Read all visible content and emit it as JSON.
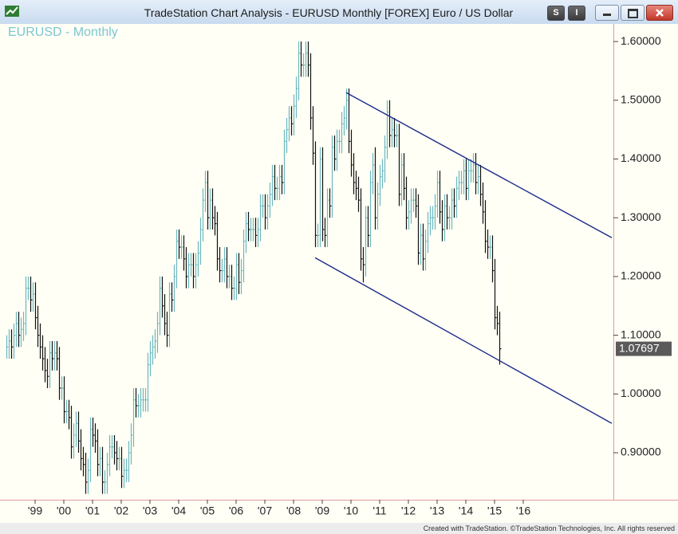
{
  "window": {
    "title": "TradeStation Chart Analysis - EURUSD Monthly [FOREX] Euro / US Dollar",
    "buttons": [
      "S",
      "I"
    ]
  },
  "footer": "Created with TradeStation. ©TradeStation Technologies, Inc. All rights reserved",
  "chart_data": {
    "type": "ohlc",
    "title": "EURUSD - Monthly",
    "x": [
      "1998-01",
      "1998-02",
      "1998-03",
      "1998-04",
      "1998-05",
      "1998-06",
      "1998-07",
      "1998-08",
      "1998-09",
      "1998-10",
      "1998-11",
      "1998-12",
      "1999-01",
      "1999-02",
      "1999-03",
      "1999-04",
      "1999-05",
      "1999-06",
      "1999-07",
      "1999-08",
      "1999-09",
      "1999-10",
      "1999-11",
      "1999-12",
      "2000-01",
      "2000-02",
      "2000-03",
      "2000-04",
      "2000-05",
      "2000-06",
      "2000-07",
      "2000-08",
      "2000-09",
      "2000-10",
      "2000-11",
      "2000-12",
      "2001-01",
      "2001-02",
      "2001-03",
      "2001-04",
      "2001-05",
      "2001-06",
      "2001-07",
      "2001-08",
      "2001-09",
      "2001-10",
      "2001-11",
      "2001-12",
      "2002-01",
      "2002-02",
      "2002-03",
      "2002-04",
      "2002-05",
      "2002-06",
      "2002-07",
      "2002-08",
      "2002-09",
      "2002-10",
      "2002-11",
      "2002-12",
      "2003-01",
      "2003-02",
      "2003-03",
      "2003-04",
      "2003-05",
      "2003-06",
      "2003-07",
      "2003-08",
      "2003-09",
      "2003-10",
      "2003-11",
      "2003-12",
      "2004-01",
      "2004-02",
      "2004-03",
      "2004-04",
      "2004-05",
      "2004-06",
      "2004-07",
      "2004-08",
      "2004-09",
      "2004-10",
      "2004-11",
      "2004-12",
      "2005-01",
      "2005-02",
      "2005-03",
      "2005-04",
      "2005-05",
      "2005-06",
      "2005-07",
      "2005-08",
      "2005-09",
      "2005-10",
      "2005-11",
      "2005-12",
      "2006-01",
      "2006-02",
      "2006-03",
      "2006-04",
      "2006-05",
      "2006-06",
      "2006-07",
      "2006-08",
      "2006-09",
      "2006-10",
      "2006-11",
      "2006-12",
      "2007-01",
      "2007-02",
      "2007-03",
      "2007-04",
      "2007-05",
      "2007-06",
      "2007-07",
      "2007-08",
      "2007-09",
      "2007-10",
      "2007-11",
      "2007-12",
      "2008-01",
      "2008-02",
      "2008-03",
      "2008-04",
      "2008-05",
      "2008-06",
      "2008-07",
      "2008-08",
      "2008-09",
      "2008-10",
      "2008-11",
      "2008-12",
      "2009-01",
      "2009-02",
      "2009-03",
      "2009-04",
      "2009-05",
      "2009-06",
      "2009-07",
      "2009-08",
      "2009-09",
      "2009-10",
      "2009-11",
      "2009-12",
      "2010-01",
      "2010-02",
      "2010-03",
      "2010-04",
      "2010-05",
      "2010-06",
      "2010-07",
      "2010-08",
      "2010-09",
      "2010-10",
      "2010-11",
      "2010-12",
      "2011-01",
      "2011-02",
      "2011-03",
      "2011-04",
      "2011-05",
      "2011-06",
      "2011-07",
      "2011-08",
      "2011-09",
      "2011-10",
      "2011-11",
      "2011-12",
      "2012-01",
      "2012-02",
      "2012-03",
      "2012-04",
      "2012-05",
      "2012-06",
      "2012-07",
      "2012-08",
      "2012-09",
      "2012-10",
      "2012-11",
      "2012-12",
      "2013-01",
      "2013-02",
      "2013-03",
      "2013-04",
      "2013-05",
      "2013-06",
      "2013-07",
      "2013-08",
      "2013-09",
      "2013-10",
      "2013-11",
      "2013-12",
      "2014-01",
      "2014-02",
      "2014-03",
      "2014-04",
      "2014-05",
      "2014-06",
      "2014-07",
      "2014-08",
      "2014-09",
      "2014-10",
      "2014-11",
      "2014-12",
      "2015-01",
      "2015-02",
      "2015-03"
    ],
    "high": [
      1.1,
      1.11,
      1.11,
      1.12,
      1.14,
      1.14,
      1.13,
      1.14,
      1.2,
      1.2,
      1.2,
      1.19,
      1.19,
      1.15,
      1.12,
      1.1,
      1.08,
      1.06,
      1.09,
      1.09,
      1.09,
      1.09,
      1.08,
      1.03,
      1.03,
      0.99,
      0.99,
      0.98,
      0.95,
      0.97,
      0.97,
      0.94,
      0.91,
      0.9,
      0.89,
      0.96,
      0.96,
      0.95,
      0.94,
      0.91,
      0.91,
      0.87,
      0.9,
      0.93,
      0.93,
      0.93,
      0.92,
      0.91,
      0.91,
      0.89,
      0.89,
      0.92,
      0.95,
      1.01,
      1.01,
      1.0,
      1.01,
      1.01,
      1.01,
      1.07,
      1.09,
      1.1,
      1.11,
      1.14,
      1.2,
      1.2,
      1.17,
      1.14,
      1.19,
      1.19,
      1.22,
      1.28,
      1.28,
      1.27,
      1.27,
      1.25,
      1.24,
      1.24,
      1.24,
      1.24,
      1.26,
      1.3,
      1.35,
      1.38,
      1.38,
      1.35,
      1.35,
      1.32,
      1.31,
      1.25,
      1.23,
      1.25,
      1.25,
      1.22,
      1.22,
      1.2,
      1.24,
      1.24,
      1.23,
      1.28,
      1.31,
      1.31,
      1.3,
      1.3,
      1.3,
      1.3,
      1.34,
      1.34,
      1.34,
      1.34,
      1.36,
      1.39,
      1.39,
      1.37,
      1.39,
      1.39,
      1.45,
      1.47,
      1.49,
      1.49,
      1.51,
      1.54,
      1.6,
      1.6,
      1.58,
      1.6,
      1.6,
      1.58,
      1.49,
      1.43,
      1.29,
      1.42,
      1.42,
      1.3,
      1.35,
      1.35,
      1.44,
      1.44,
      1.45,
      1.45,
      1.48,
      1.49,
      1.52,
      1.52,
      1.45,
      1.41,
      1.38,
      1.37,
      1.35,
      1.25,
      1.32,
      1.32,
      1.38,
      1.41,
      1.42,
      1.36,
      1.39,
      1.4,
      1.44,
      1.5,
      1.5,
      1.47,
      1.47,
      1.46,
      1.46,
      1.41,
      1.41,
      1.37,
      1.33,
      1.35,
      1.35,
      1.35,
      1.34,
      1.29,
      1.29,
      1.28,
      1.31,
      1.32,
      1.32,
      1.34,
      1.38,
      1.38,
      1.33,
      1.34,
      1.34,
      1.32,
      1.35,
      1.35,
      1.37,
      1.38,
      1.38,
      1.4,
      1.4,
      1.4,
      1.4,
      1.41,
      1.41,
      1.39,
      1.39,
      1.36,
      1.33,
      1.28,
      1.27,
      1.27,
      1.23,
      1.15,
      1.14
    ],
    "low": [
      1.06,
      1.06,
      1.06,
      1.06,
      1.08,
      1.08,
      1.08,
      1.09,
      1.1,
      1.16,
      1.14,
      1.14,
      1.11,
      1.08,
      1.06,
      1.04,
      1.02,
      1.01,
      1.01,
      1.04,
      1.04,
      1.04,
      0.99,
      0.99,
      0.95,
      0.95,
      0.94,
      0.89,
      0.89,
      0.91,
      0.9,
      0.87,
      0.86,
      0.83,
      0.83,
      0.85,
      0.91,
      0.9,
      0.86,
      0.86,
      0.83,
      0.83,
      0.83,
      0.86,
      0.89,
      0.88,
      0.87,
      0.87,
      0.84,
      0.84,
      0.85,
      0.85,
      0.88,
      0.91,
      0.96,
      0.96,
      0.96,
      0.97,
      0.97,
      0.97,
      1.03,
      1.05,
      1.06,
      1.07,
      1.1,
      1.13,
      1.1,
      1.08,
      1.08,
      1.14,
      1.14,
      1.18,
      1.23,
      1.23,
      1.21,
      1.18,
      1.18,
      1.2,
      1.18,
      1.18,
      1.2,
      1.22,
      1.26,
      1.31,
      1.28,
      1.28,
      1.28,
      1.27,
      1.21,
      1.19,
      1.19,
      1.19,
      1.18,
      1.18,
      1.16,
      1.16,
      1.16,
      1.17,
      1.17,
      1.19,
      1.24,
      1.26,
      1.26,
      1.26,
      1.25,
      1.25,
      1.26,
      1.3,
      1.28,
      1.28,
      1.3,
      1.32,
      1.33,
      1.33,
      1.33,
      1.34,
      1.34,
      1.41,
      1.43,
      1.44,
      1.44,
      1.47,
      1.5,
      1.54,
      1.54,
      1.54,
      1.54,
      1.45,
      1.39,
      1.25,
      1.25,
      1.25,
      1.26,
      1.25,
      1.25,
      1.3,
      1.3,
      1.38,
      1.38,
      1.41,
      1.41,
      1.44,
      1.45,
      1.41,
      1.37,
      1.34,
      1.33,
      1.31,
      1.21,
      1.19,
      1.2,
      1.25,
      1.25,
      1.34,
      1.28,
      1.28,
      1.32,
      1.35,
      1.36,
      1.4,
      1.42,
      1.42,
      1.42,
      1.42,
      1.32,
      1.32,
      1.33,
      1.28,
      1.28,
      1.29,
      1.31,
      1.3,
      1.22,
      1.22,
      1.21,
      1.21,
      1.24,
      1.27,
      1.28,
      1.28,
      1.3,
      1.29,
      1.26,
      1.26,
      1.28,
      1.28,
      1.28,
      1.3,
      1.3,
      1.33,
      1.34,
      1.34,
      1.33,
      1.33,
      1.36,
      1.36,
      1.34,
      1.34,
      1.32,
      1.29,
      1.24,
      1.23,
      1.23,
      1.19,
      1.11,
      1.1,
      1.05
    ],
    "close": [
      1.08,
      1.09,
      1.08,
      1.1,
      1.12,
      1.1,
      1.11,
      1.12,
      1.18,
      1.18,
      1.16,
      1.17,
      1.13,
      1.1,
      1.08,
      1.06,
      1.04,
      1.03,
      1.07,
      1.06,
      1.07,
      1.06,
      1.01,
      1.01,
      0.97,
      0.97,
      0.96,
      0.91,
      0.93,
      0.95,
      0.92,
      0.89,
      0.88,
      0.85,
      0.87,
      0.94,
      0.93,
      0.92,
      0.88,
      0.89,
      0.85,
      0.85,
      0.88,
      0.91,
      0.91,
      0.9,
      0.89,
      0.89,
      0.86,
      0.87,
      0.87,
      0.9,
      0.93,
      0.99,
      0.98,
      0.98,
      0.99,
      0.99,
      0.99,
      1.05,
      1.07,
      1.08,
      1.09,
      1.12,
      1.18,
      1.15,
      1.12,
      1.1,
      1.17,
      1.16,
      1.2,
      1.26,
      1.25,
      1.25,
      1.23,
      1.2,
      1.22,
      1.22,
      1.2,
      1.22,
      1.24,
      1.28,
      1.33,
      1.36,
      1.3,
      1.33,
      1.3,
      1.29,
      1.23,
      1.21,
      1.21,
      1.23,
      1.2,
      1.2,
      1.18,
      1.18,
      1.22,
      1.19,
      1.21,
      1.26,
      1.29,
      1.28,
      1.28,
      1.28,
      1.27,
      1.28,
      1.32,
      1.32,
      1.3,
      1.32,
      1.34,
      1.37,
      1.35,
      1.35,
      1.37,
      1.36,
      1.43,
      1.45,
      1.47,
      1.46,
      1.49,
      1.52,
      1.58,
      1.56,
      1.56,
      1.58,
      1.56,
      1.47,
      1.41,
      1.27,
      1.27,
      1.4,
      1.28,
      1.27,
      1.33,
      1.32,
      1.42,
      1.4,
      1.43,
      1.43,
      1.46,
      1.47,
      1.5,
      1.43,
      1.39,
      1.36,
      1.35,
      1.33,
      1.23,
      1.22,
      1.3,
      1.27,
      1.36,
      1.39,
      1.3,
      1.34,
      1.37,
      1.38,
      1.42,
      1.48,
      1.44,
      1.45,
      1.44,
      1.44,
      1.34,
      1.39,
      1.35,
      1.3,
      1.31,
      1.33,
      1.33,
      1.32,
      1.24,
      1.27,
      1.23,
      1.26,
      1.29,
      1.3,
      1.3,
      1.32,
      1.36,
      1.31,
      1.28,
      1.32,
      1.3,
      1.3,
      1.33,
      1.32,
      1.35,
      1.36,
      1.36,
      1.38,
      1.35,
      1.38,
      1.38,
      1.39,
      1.36,
      1.37,
      1.34,
      1.31,
      1.26,
      1.25,
      1.25,
      1.21,
      1.13,
      1.12,
      1.07697
    ],
    "up_color": "#6cb8c0",
    "down_color": "#111111",
    "channel_color": "#1c2a8a",
    "channel_lines": [
      {
        "x": [
          "2009-11",
          "2019-02"
        ],
        "y": [
          1.513,
          1.266
        ]
      },
      {
        "x": [
          "2008-10",
          "2019-02"
        ],
        "y": [
          1.232,
          0.95
        ]
      }
    ],
    "xlim": [
      "1998-01",
      "2019-02"
    ],
    "xticks": [
      {
        "value": "1999-01",
        "label": "'99"
      },
      {
        "value": "2000-01",
        "label": "'00"
      },
      {
        "value": "2001-01",
        "label": "'01"
      },
      {
        "value": "2002-01",
        "label": "'02"
      },
      {
        "value": "2003-01",
        "label": "'03"
      },
      {
        "value": "2004-01",
        "label": "'04"
      },
      {
        "value": "2005-01",
        "label": "'05"
      },
      {
        "value": "2006-01",
        "label": "'06"
      },
      {
        "value": "2007-01",
        "label": "'07"
      },
      {
        "value": "2008-01",
        "label": "'08"
      },
      {
        "value": "2009-01",
        "label": "'09"
      },
      {
        "value": "2010-01",
        "label": "'10"
      },
      {
        "value": "2011-01",
        "label": "'11"
      },
      {
        "value": "2012-01",
        "label": "'12"
      },
      {
        "value": "2013-01",
        "label": "'13"
      },
      {
        "value": "2014-01",
        "label": "'14"
      },
      {
        "value": "2015-01",
        "label": "'15"
      },
      {
        "value": "2016-01",
        "label": "'16"
      }
    ],
    "ylim": [
      0.82,
      1.63
    ],
    "yticks": [
      {
        "value": 0.9,
        "label": "0.90000"
      },
      {
        "value": 1.0,
        "label": "1.00000"
      },
      {
        "value": 1.1,
        "label": "1.10000"
      },
      {
        "value": 1.2,
        "label": "1.20000"
      },
      {
        "value": 1.3,
        "label": "1.30000"
      },
      {
        "value": 1.4,
        "label": "1.40000"
      },
      {
        "value": 1.5,
        "label": "1.50000"
      },
      {
        "value": 1.6,
        "label": "1.60000"
      }
    ]
  }
}
